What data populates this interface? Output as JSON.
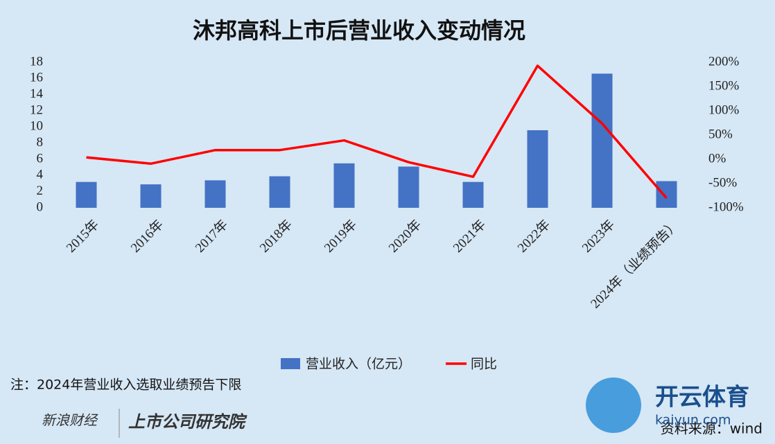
{
  "chart_data": {
    "type": "bar_line",
    "title": "沐邦高科上市后营业收入变动情况",
    "categories": [
      "2015年",
      "2016年",
      "2017年",
      "2018年",
      "2019年",
      "2020年",
      "2021年",
      "2022年",
      "2023年",
      "2024年（业绩预告）"
    ],
    "series": [
      {
        "name": "营业收入（亿元）",
        "type": "bar",
        "color": "#4472c4",
        "values": [
          3.2,
          2.9,
          3.4,
          3.9,
          5.5,
          5.1,
          3.2,
          9.6,
          16.6,
          3.3
        ]
      },
      {
        "name": "同比",
        "type": "line",
        "axis": "y2",
        "color": "#ff0000",
        "values": [
          4,
          -9,
          19,
          19,
          39,
          -6,
          -36,
          193,
          74,
          -80
        ]
      }
    ],
    "ylim": [
      0,
      18
    ],
    "yticks": [
      0,
      2,
      4,
      6,
      8,
      10,
      12,
      14,
      16,
      18
    ],
    "y2lim": [
      -100,
      200
    ],
    "y2ticks": [
      {
        "value": -100,
        "label": "-100%"
      },
      {
        "value": -50,
        "label": "-50%"
      },
      {
        "value": 0,
        "label": "0%"
      },
      {
        "value": 50,
        "label": "50%"
      },
      {
        "value": 100,
        "label": "100%"
      },
      {
        "value": 150,
        "label": "150%"
      },
      {
        "value": 200,
        "label": "200%"
      }
    ],
    "note": "注：2024年营业收入选取业绩预告下限",
    "source": "资料来源：wind",
    "logos": [
      "新浪财经",
      "上市公司研究院",
      "开云体育",
      "kaiyun.com"
    ]
  }
}
